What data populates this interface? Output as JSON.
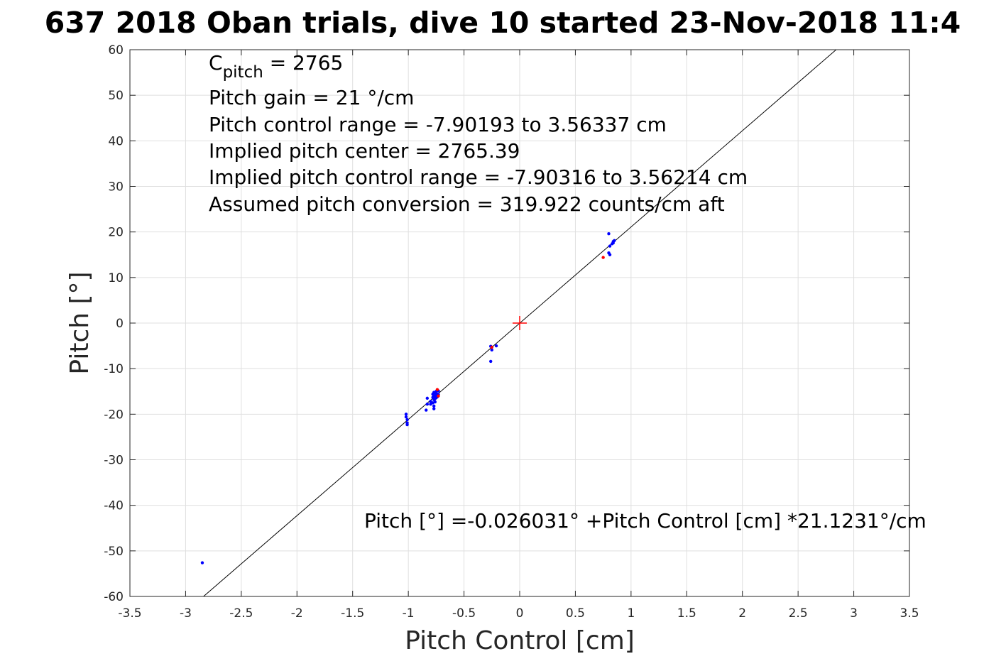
{
  "chart_data": {
    "type": "scatter",
    "title": "637 2018 Oban trials, dive 10 started 23-Nov-2018 11:4",
    "xlabel": "Pitch Control [cm]",
    "ylabel": "Pitch [°]",
    "xlim": [
      -3.5,
      3.5
    ],
    "ylim": [
      -60,
      60
    ],
    "grid": true,
    "x_ticks": [
      -3.5,
      -3,
      -2.5,
      -2,
      -1.5,
      -1,
      -0.5,
      0,
      0.5,
      1,
      1.5,
      2,
      2.5,
      3,
      3.5
    ],
    "y_ticks": [
      -60,
      -50,
      -40,
      -30,
      -20,
      -10,
      0,
      10,
      20,
      30,
      40,
      50,
      60
    ],
    "annotations": {
      "c_pitch_main": "C",
      "c_pitch_sub": "pitch",
      "c_pitch_value": " = 2765",
      "lines": [
        "Pitch gain = 21 °/cm",
        "Pitch control range = -7.90193 to 3.56337 cm",
        "Implied pitch center = 2765.39",
        "Implied pitch control range = -7.90316 to 3.56214 cm",
        "Assumed pitch conversion = 319.922 counts/cm aft"
      ],
      "fit_equation": "Pitch [°] =-0.026031° +Pitch Control [cm] *21.1231°/cm"
    },
    "fit_line": {
      "intercept": -0.026031,
      "slope": 21.1231,
      "color": "#000000"
    },
    "center_marker": {
      "x": 0,
      "y": 0,
      "color": "#ff0000"
    },
    "series": [
      {
        "color": "#0000ff",
        "points": [
          [
            -2.85,
            -52.6
          ],
          [
            -1.02,
            -20.0
          ],
          [
            -1.02,
            -20.6
          ],
          [
            -1.01,
            -21.2
          ],
          [
            -1.01,
            -21.9
          ],
          [
            -1.01,
            -22.3
          ],
          [
            -0.83,
            -16.5
          ],
          [
            -0.83,
            -17.8
          ],
          [
            -0.84,
            -19.1
          ],
          [
            -0.8,
            -17.2
          ],
          [
            -0.8,
            -17.8
          ],
          [
            -0.78,
            -15.6
          ],
          [
            -0.78,
            -16.3
          ],
          [
            -0.78,
            -17.5
          ],
          [
            -0.77,
            -15.2
          ],
          [
            -0.77,
            -16.0
          ],
          [
            -0.77,
            -16.8
          ],
          [
            -0.77,
            -18.2
          ],
          [
            -0.77,
            -18.8
          ],
          [
            -0.76,
            -15.4
          ],
          [
            -0.76,
            -16.6
          ],
          [
            -0.76,
            -17.3
          ],
          [
            -0.75,
            -15.0
          ],
          [
            -0.75,
            -15.9
          ],
          [
            -0.75,
            -16.4
          ],
          [
            -0.74,
            -15.6
          ],
          [
            -0.74,
            -16.2
          ],
          [
            -0.73,
            -14.9
          ],
          [
            -0.73,
            -15.7
          ],
          [
            -0.26,
            -5.1
          ],
          [
            -0.25,
            -5.9
          ],
          [
            -0.26,
            -8.4
          ],
          [
            -0.21,
            -5.0
          ],
          [
            0.8,
            19.6
          ],
          [
            0.8,
            15.4
          ],
          [
            0.81,
            15.0
          ],
          [
            0.81,
            16.9
          ],
          [
            0.83,
            17.4
          ],
          [
            0.84,
            17.9
          ],
          [
            0.84,
            17.6
          ],
          [
            0.85,
            18.1
          ]
        ]
      },
      {
        "color": "#ff0000",
        "points": [
          [
            -0.74,
            -14.6
          ],
          [
            -0.73,
            -16.0
          ],
          [
            -0.25,
            -5.3
          ],
          [
            0.75,
            14.4
          ]
        ]
      }
    ]
  }
}
